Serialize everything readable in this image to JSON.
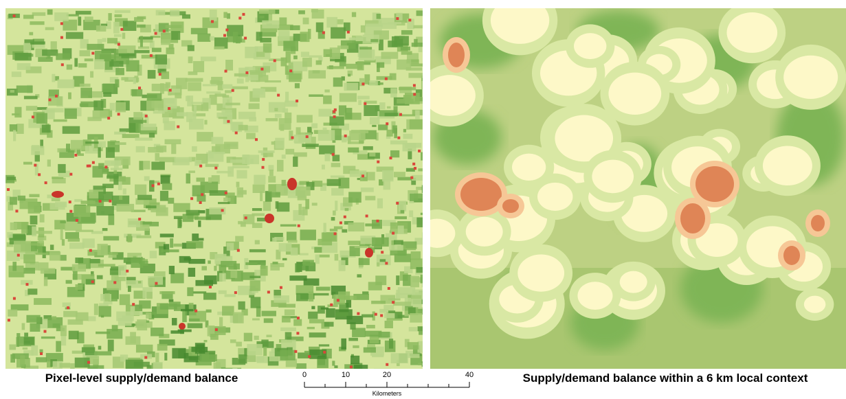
{
  "captions": {
    "left": "Pixel-level supply/demand balance",
    "right": "Supply/demand balance within a 6 km local context"
  },
  "scale_bar": {
    "ticks": [
      0,
      10,
      20,
      40
    ],
    "unit_label": "Kilometers"
  }
}
